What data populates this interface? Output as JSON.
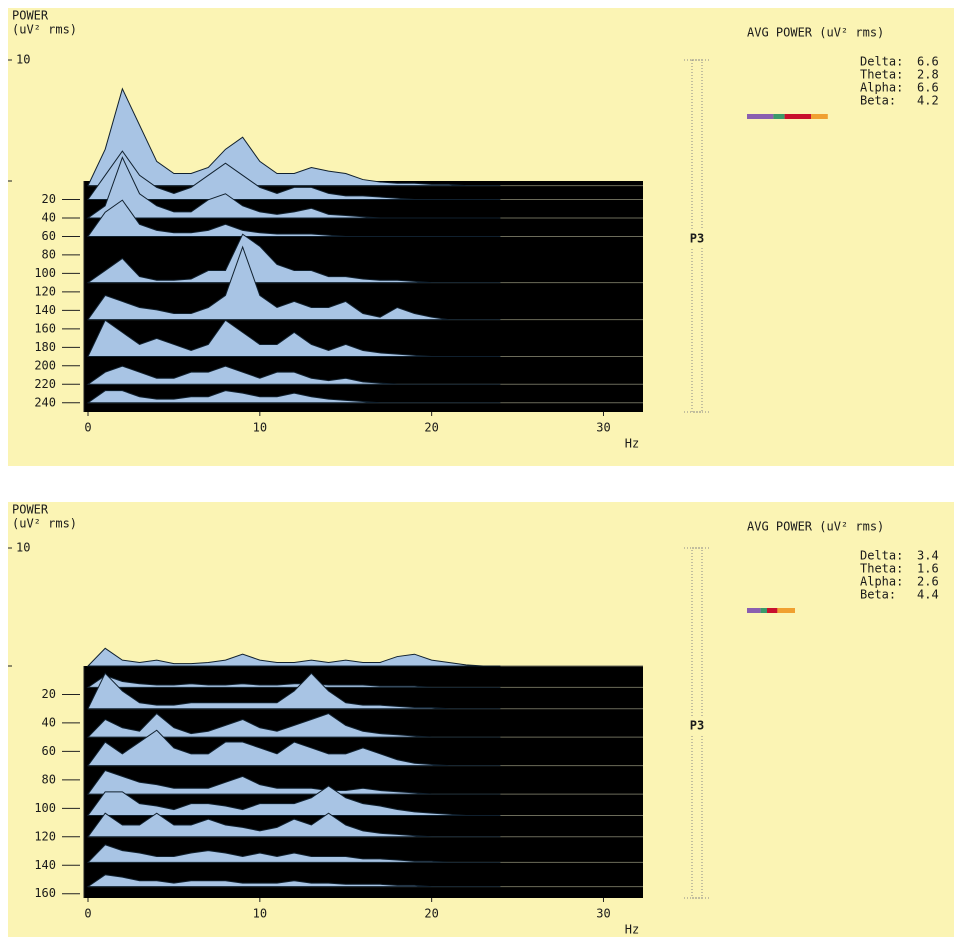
{
  "panels": [
    {
      "type": "waterfall",
      "power_label": "POWER",
      "power_unit": "(uV² rms)",
      "power_lim": [
        0,
        10
      ],
      "power_ticks": [
        10
      ],
      "epoch_lim": [
        0,
        250
      ],
      "epoch_ticks": [
        20,
        40,
        60,
        80,
        100,
        120,
        140,
        160,
        180,
        200,
        220,
        240
      ],
      "freq_lim": [
        0,
        32.3
      ],
      "freq_ticks": [
        0,
        10,
        20,
        30
      ],
      "freq_unit": "Hz",
      "x": [
        0,
        1,
        2,
        3,
        4,
        5,
        6,
        7,
        8,
        9,
        10,
        11,
        12,
        13,
        14,
        15,
        16,
        17,
        18,
        19,
        20,
        21,
        22,
        23,
        24
      ],
      "traces": [
        {
          "epoch": 5,
          "values": [
            0,
            3,
            8,
            5,
            2,
            1,
            1,
            1.5,
            3,
            4,
            2,
            1,
            1,
            1.5,
            1.2,
            1,
            0.5,
            0.3,
            0.2,
            0.2,
            0.1,
            0.1,
            0,
            0,
            0
          ]
        },
        {
          "epoch": 20,
          "values": [
            0,
            2,
            4,
            2,
            1,
            0.5,
            1,
            2,
            3,
            2,
            1,
            0.5,
            1,
            1,
            0.5,
            0.3,
            0.3,
            0.2,
            0.1,
            0,
            0,
            0,
            0,
            0,
            0
          ]
        },
        {
          "epoch": 40,
          "values": [
            0,
            1,
            5,
            2,
            1,
            0.5,
            0.5,
            1.5,
            2,
            1,
            0.5,
            0.3,
            0.5,
            0.8,
            0.3,
            0.2,
            0.1,
            0,
            0,
            0,
            0,
            0,
            0,
            0,
            0
          ]
        },
        {
          "epoch": 60,
          "values": [
            0,
            2,
            3,
            1,
            0.5,
            0.3,
            0.3,
            0.5,
            1,
            0.5,
            0.3,
            0.2,
            0.2,
            0.2,
            0.1,
            0,
            0,
            0,
            0,
            0,
            0,
            0,
            0,
            0,
            0
          ]
        },
        {
          "epoch": 110,
          "values": [
            0,
            1,
            2,
            0.5,
            0.2,
            0.2,
            0.3,
            1,
            1,
            4,
            3,
            1.5,
            1,
            1,
            0.5,
            0.5,
            0.3,
            0.2,
            0.2,
            0.1,
            0,
            0,
            0,
            0,
            0
          ]
        },
        {
          "epoch": 150,
          "values": [
            0,
            2,
            1.5,
            1,
            0.8,
            0.5,
            0.5,
            1,
            2,
            6,
            2,
            1,
            1.5,
            1,
            1,
            1.5,
            0.5,
            0.2,
            1,
            0.5,
            0.2,
            0,
            0,
            0,
            0
          ]
        },
        {
          "epoch": 190,
          "values": [
            0,
            3,
            2,
            1,
            1.5,
            1,
            0.5,
            1,
            3,
            2,
            1,
            1,
            2,
            1,
            0.5,
            1,
            0.5,
            0.3,
            0.2,
            0.1,
            0,
            0,
            0,
            0,
            0
          ]
        },
        {
          "epoch": 220,
          "values": [
            0,
            1,
            1.5,
            1,
            0.5,
            0.5,
            1,
            1,
            1.5,
            1,
            0.5,
            1,
            1,
            0.5,
            0.3,
            0.5,
            0.2,
            0.1,
            0,
            0,
            0,
            0,
            0,
            0,
            0
          ]
        },
        {
          "epoch": 240,
          "values": [
            0,
            1,
            1,
            0.5,
            0.3,
            0.3,
            0.5,
            0.5,
            1,
            0.8,
            0.5,
            0.5,
            0.8,
            0.5,
            0.3,
            0.2,
            0.1,
            0,
            0,
            0,
            0,
            0,
            0,
            0,
            0
          ]
        }
      ],
      "channel": "P3",
      "avg_title": "AVG POWER (uV² rms)",
      "bands": [
        {
          "name": "Delta:",
          "value": 6.6,
          "color": "#8a5fb0"
        },
        {
          "name": "Theta:",
          "value": 2.8,
          "color": "#3a9a6a"
        },
        {
          "name": "Alpha:",
          "value": 6.6,
          "color": "#c8102e"
        },
        {
          "name": "Beta:",
          "value": 4.2,
          "color": "#f0a030"
        }
      ]
    },
    {
      "type": "waterfall",
      "power_label": "POWER",
      "power_unit": "(uV² rms)",
      "power_lim": [
        0,
        10
      ],
      "power_ticks": [
        10
      ],
      "epoch_lim": [
        0,
        163
      ],
      "epoch_ticks": [
        20,
        40,
        60,
        80,
        100,
        120,
        140,
        160
      ],
      "freq_lim": [
        0,
        32.3
      ],
      "freq_ticks": [
        0,
        10,
        20,
        30
      ],
      "freq_unit": "Hz",
      "x": [
        0,
        1,
        2,
        3,
        4,
        5,
        6,
        7,
        8,
        9,
        10,
        11,
        12,
        13,
        14,
        15,
        16,
        17,
        18,
        19,
        20,
        21,
        22,
        23,
        24
      ],
      "traces": [
        {
          "epoch": 0,
          "values": [
            0,
            1.5,
            0.5,
            0.3,
            0.5,
            0.2,
            0.2,
            0.3,
            0.5,
            1,
            0.5,
            0.3,
            0.3,
            0.5,
            0.3,
            0.5,
            0.3,
            0.3,
            0.8,
            1,
            0.5,
            0.3,
            0.1,
            0,
            0
          ]
        },
        {
          "epoch": 15,
          "values": [
            0,
            1,
            0.5,
            0.3,
            0.2,
            0.2,
            0.3,
            0.2,
            0.2,
            0.3,
            0.2,
            0.2,
            0.3,
            0.3,
            0.2,
            0.2,
            0.2,
            0.1,
            0.1,
            0.1,
            0,
            0,
            0,
            0,
            0
          ]
        },
        {
          "epoch": 30,
          "values": [
            0,
            3,
            1.5,
            0.5,
            0.3,
            0.3,
            0.5,
            0.5,
            0.5,
            0.5,
            0.5,
            0.5,
            1.5,
            3,
            1.5,
            0.5,
            0.3,
            0.3,
            0.2,
            0.1,
            0.1,
            0,
            0,
            0,
            0
          ]
        },
        {
          "epoch": 50,
          "values": [
            0,
            1.5,
            0.8,
            0.5,
            2,
            0.8,
            0.3,
            0.5,
            1,
            1.5,
            0.8,
            0.5,
            1,
            1.5,
            2,
            1,
            0.5,
            0.3,
            0.2,
            0.1,
            0,
            0,
            0,
            0,
            0
          ]
        },
        {
          "epoch": 70,
          "values": [
            0,
            2,
            1,
            2,
            3,
            1.5,
            1,
            1,
            2,
            2,
            1.5,
            1,
            2,
            1.5,
            1,
            1,
            1.5,
            1,
            0.5,
            0.2,
            0.1,
            0,
            0,
            0,
            0
          ]
        },
        {
          "epoch": 90,
          "values": [
            0,
            2,
            1.5,
            1,
            0.8,
            0.5,
            0.5,
            0.5,
            1,
            1.5,
            0.8,
            0.5,
            0.5,
            0.5,
            0.3,
            0.3,
            0.5,
            0.3,
            0.2,
            0.1,
            0,
            0,
            0,
            0,
            0
          ]
        },
        {
          "epoch": 105,
          "values": [
            0,
            2,
            2,
            1,
            0.8,
            0.5,
            1,
            1,
            0.8,
            0.5,
            1,
            1,
            1,
            1.5,
            2.5,
            1.5,
            1,
            0.8,
            0.5,
            0.3,
            0.2,
            0.1,
            0,
            0,
            0
          ]
        },
        {
          "epoch": 120,
          "values": [
            0,
            2,
            1,
            1,
            2,
            1,
            1,
            1.5,
            1,
            0.8,
            0.5,
            0.8,
            1.5,
            1,
            2,
            1,
            0.5,
            0.3,
            0.2,
            0.1,
            0,
            0,
            0,
            0,
            0
          ]
        },
        {
          "epoch": 138,
          "values": [
            0,
            1.5,
            1,
            0.8,
            0.5,
            0.5,
            0.8,
            1,
            0.8,
            0.5,
            0.8,
            0.5,
            0.8,
            0.5,
            0.5,
            0.5,
            0.3,
            0.3,
            0.2,
            0.1,
            0.1,
            0,
            0,
            0,
            0
          ]
        },
        {
          "epoch": 155,
          "values": [
            0,
            1,
            0.8,
            0.5,
            0.5,
            0.3,
            0.5,
            0.5,
            0.5,
            0.3,
            0.3,
            0.3,
            0.5,
            0.3,
            0.3,
            0.2,
            0.2,
            0.2,
            0.1,
            0.1,
            0,
            0,
            0,
            0,
            0
          ]
        }
      ],
      "channel": "P3",
      "avg_title": "AVG POWER (uV² rms)",
      "bands": [
        {
          "name": "Delta:",
          "value": 3.4,
          "color": "#8a5fb0"
        },
        {
          "name": "Theta:",
          "value": 1.6,
          "color": "#3a9a6a"
        },
        {
          "name": "Alpha:",
          "value": 2.6,
          "color": "#c8102e"
        },
        {
          "name": "Beta:",
          "value": 4.4,
          "color": "#f0a030"
        }
      ]
    }
  ]
}
